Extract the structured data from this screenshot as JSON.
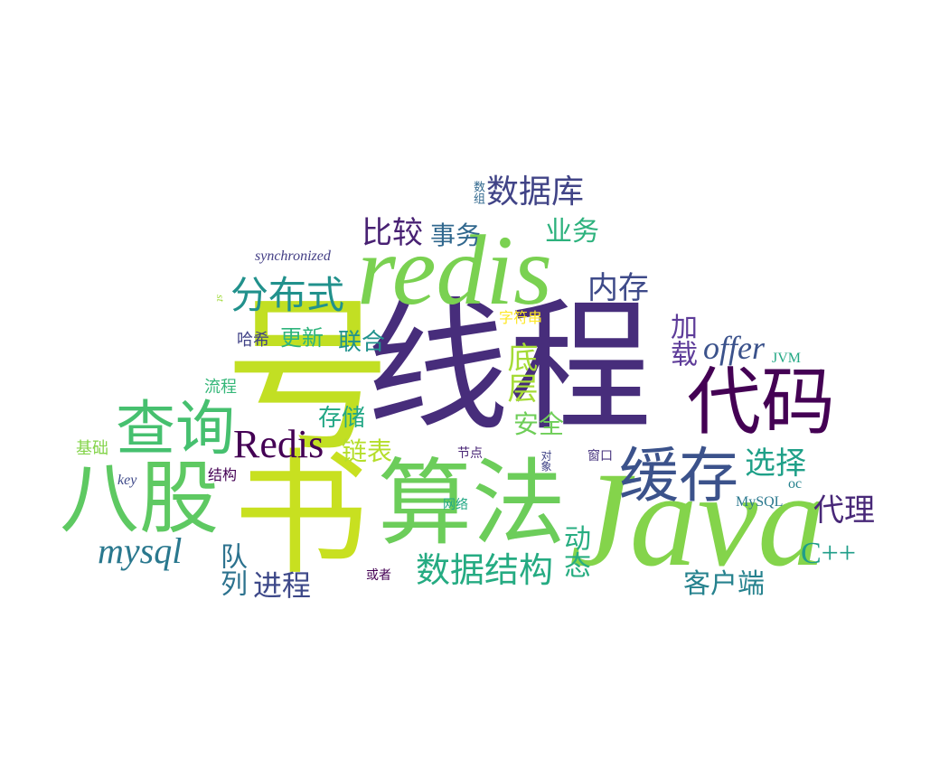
{
  "words": {
    "w1": {
      "text": "线程",
      "color": "#472d7b"
    },
    "w2": {
      "text": "redis",
      "color": "#7ad151"
    },
    "w3": {
      "text": "Java",
      "color": "#84d44b"
    },
    "w4": {
      "text": "算法",
      "color": "#6ccd5a"
    },
    "w5": {
      "text": "八股",
      "color": "#5ec962"
    },
    "w6": {
      "text": "代码",
      "color": "#440154"
    },
    "w7": {
      "text": "查询",
      "color": "#46c06f"
    },
    "w8": {
      "text": "缓存",
      "color": "#3b528b"
    },
    "w9": {
      "text": "数据库",
      "color": "#414487"
    },
    "w10": {
      "text": "分布式",
      "color": "#21918c"
    },
    "w11": {
      "text": "Redis",
      "color": "#440154"
    },
    "w12": {
      "text": "数据结构",
      "color": "#25ab82"
    },
    "w13": {
      "text": "mysql",
      "color": "#2a788e"
    },
    "w14": {
      "text": "offer",
      "color": "#3b528b"
    },
    "w15": {
      "text": "比较",
      "color": "#482173"
    },
    "w16": {
      "text": "事务",
      "color": "#31688e"
    },
    "w17": {
      "text": "业务",
      "color": "#2db27d"
    },
    "w18": {
      "text": "内存",
      "color": "#3e4a89"
    },
    "w19": {
      "text": "底层",
      "color": "#a5db36"
    },
    "w20": {
      "text": "加载",
      "color": "#5e3c99"
    },
    "w21": {
      "text": "选择",
      "color": "#1fa088"
    },
    "w22": {
      "text": "代理",
      "color": "#482878"
    },
    "w23": {
      "text": "C++",
      "color": "#1f9e89"
    },
    "w24": {
      "text": "客户端",
      "color": "#26828e"
    },
    "w25": {
      "text": "进程",
      "color": "#3e4989"
    },
    "w26": {
      "text": "队列",
      "color": "#2c728e"
    },
    "w27": {
      "text": "动态",
      "color": "#27ad81"
    },
    "w28": {
      "text": "安全",
      "color": "#6ece58"
    },
    "w29": {
      "text": "链表",
      "color": "#b5de2b"
    },
    "w30": {
      "text": "存储",
      "color": "#22a785"
    },
    "w31": {
      "text": "联合",
      "color": "#20928c"
    },
    "w32": {
      "text": "更新",
      "color": "#2fb47c"
    },
    "w33": {
      "text": "哈希",
      "color": "#414287"
    },
    "w34": {
      "text": "流程",
      "color": "#35b779"
    },
    "w35": {
      "text": "基础",
      "color": "#84d44b"
    },
    "w36": {
      "text": "结构",
      "color": "#440154"
    },
    "w37": {
      "text": "key",
      "color": "#3e4989"
    },
    "w38": {
      "text": "synchronized",
      "color": "#433e85"
    },
    "w39": {
      "text": "JVM",
      "color": "#22a884"
    },
    "w40": {
      "text": "MySQL",
      "color": "#2a788e"
    },
    "w41": {
      "text": "oc",
      "color": "#26828e"
    },
    "w42": {
      "text": "字符串",
      "color": "#fde725"
    },
    "w43": {
      "text": "节点",
      "color": "#482475"
    },
    "w44": {
      "text": "网络",
      "color": "#22a884"
    },
    "w45": {
      "text": "对象",
      "color": "#414487"
    },
    "w46": {
      "text": "窗口",
      "color": "#46337e"
    },
    "w47": {
      "text": "或者",
      "color": "#440154"
    },
    "w48": {
      "text": "数组",
      "color": "#31688e"
    },
    "w49": {
      "text": "st",
      "color": "#a0da39"
    },
    "w50": {
      "text": "号",
      "color": "#c2df23"
    },
    "w51": {
      "text": "书",
      "color": "#c8e020"
    }
  }
}
